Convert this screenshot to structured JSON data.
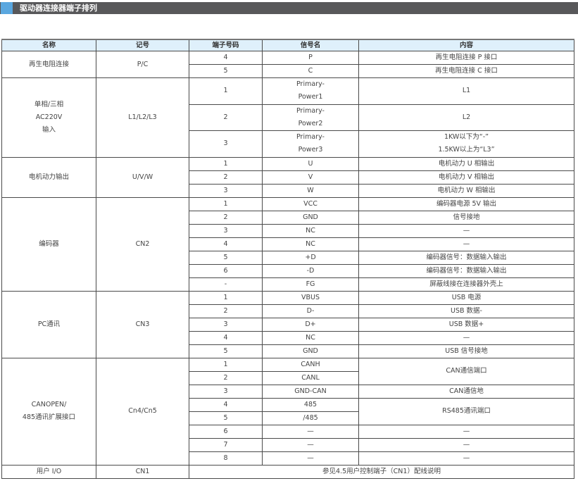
{
  "section_title": "驱动器连接器端子排列",
  "colors": {
    "title_bar": "#58585a",
    "accent": "#5aa7df",
    "header_bg": "#dff0fb"
  },
  "table": {
    "headers": [
      "名称",
      "记号",
      "端子号码",
      "信号名",
      "内容"
    ],
    "groups": [
      {
        "name": "再生电阻连接",
        "symbol": "P/C",
        "rows": [
          {
            "pin": "4",
            "signal": "P",
            "content": "再生电阻连接 P 接口"
          },
          {
            "pin": "5",
            "signal": "C",
            "content": "再生电阻连接 C 接口"
          }
        ]
      },
      {
        "name": "单相/三相\nAC220V\n输入",
        "symbol": "L1/L2/L3",
        "tall": true,
        "rows": [
          {
            "pin": "1",
            "signal": "Primary-\nPower1",
            "content": "L1"
          },
          {
            "pin": "2",
            "signal": "Primary-\nPower2",
            "content": "L2"
          },
          {
            "pin": "3",
            "signal": "Primary-\nPower3",
            "content": "1KW以下为“-”\n1.5KW以上为“L3”"
          }
        ]
      },
      {
        "name": "电机动力输出",
        "symbol": "U/V/W",
        "rows": [
          {
            "pin": "1",
            "signal": "U",
            "content": "电机动力 U 相输出"
          },
          {
            "pin": "2",
            "signal": "V",
            "content": "电机动力 V 相输出"
          },
          {
            "pin": "3",
            "signal": "W",
            "content": "电机动力 W 相输出"
          }
        ]
      },
      {
        "name": "编码器",
        "symbol": "CN2",
        "rows": [
          {
            "pin": "1",
            "signal": "VCC",
            "content": "编码器电源 5V 输出"
          },
          {
            "pin": "2",
            "signal": "GND",
            "content": "信号接地"
          },
          {
            "pin": "3",
            "signal": "NC",
            "content": "—"
          },
          {
            "pin": "4",
            "signal": "NC",
            "content": "—"
          },
          {
            "pin": "5",
            "signal": "+D",
            "content": "编码器信号：数据输入输出"
          },
          {
            "pin": "6",
            "signal": "-D",
            "content": "编码器信号：数据输入输出"
          },
          {
            "pin": "-",
            "signal": "FG",
            "content": "屏蔽线接在连接器外壳上"
          }
        ]
      },
      {
        "name": "PC通讯",
        "symbol": "CN3",
        "rows": [
          {
            "pin": "1",
            "signal": "VBUS",
            "content": "USB 电源"
          },
          {
            "pin": "2",
            "signal": "D-",
            "content": "USB 数据-"
          },
          {
            "pin": "3",
            "signal": "D+",
            "content": "USB 数据+"
          },
          {
            "pin": "4",
            "signal": "NC",
            "content": "—"
          },
          {
            "pin": "5",
            "signal": "GND",
            "content": "USB 信号接地"
          }
        ]
      },
      {
        "name": "CANOPEN/\n485通讯扩展接口",
        "symbol": "Cn4/Cn5",
        "rows": [
          {
            "pin": "1",
            "signal": "CANH",
            "content": "CAN通信端口",
            "content_span": 2
          },
          {
            "pin": "2",
            "signal": "CANL"
          },
          {
            "pin": "3",
            "signal": "GND-CAN",
            "content": "CAN通信地"
          },
          {
            "pin": "4",
            "signal": "485",
            "content": "RS485通讯端口",
            "content_span": 2
          },
          {
            "pin": "5",
            "signal": "/485"
          },
          {
            "pin": "6",
            "signal": "—",
            "content": "—"
          },
          {
            "pin": "7",
            "signal": "—",
            "content": "—"
          },
          {
            "pin": "8",
            "signal": "—",
            "content": "—"
          }
        ]
      }
    ],
    "footer_row": {
      "name": "用户 I/O",
      "symbol": "CN1",
      "note": "参见4.5用户控制端子（CN1）配线说明"
    }
  }
}
